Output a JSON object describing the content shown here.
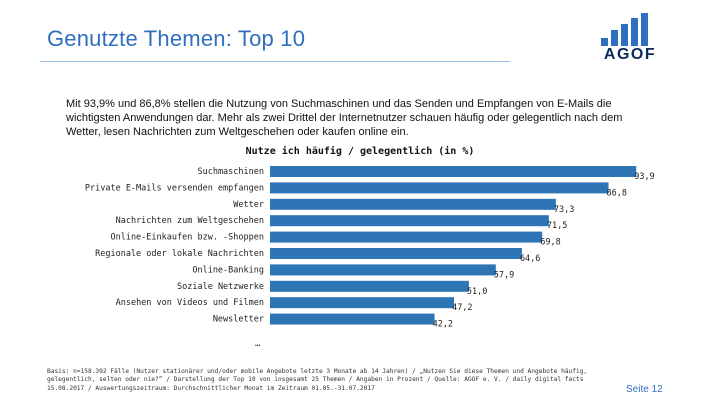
{
  "header": {
    "title": "Genutzte Themen: Top 10",
    "logo_text": "AGOF"
  },
  "intro": {
    "text": "Mit 93,9% und 86,8% stellen die Nutzung von Suchmaschinen und das Senden und Empfangen von    E-Mails die wichtigsten Anwendungen dar. Mehr als zwei Drittel der Internetnutzer schauen häufig oder gelegentlich nach dem Wetter, lesen Nachrichten zum Weltgeschehen oder kaufen online ein."
  },
  "chart_data": {
    "type": "bar",
    "orientation": "horizontal",
    "title": "Nutze ich häufig / gelegentlich (in %)",
    "categories": [
      "Suchmaschinen",
      "Private E-Mails versenden empfangen",
      "Wetter",
      "Nachrichten zum Weltgeschehen",
      "Online-Einkaufen bzw. -Shoppen",
      "Regionale oder lokale Nachrichten",
      "Online-Banking",
      "Soziale Netzwerke",
      "Ansehen von Videos und Filmen",
      "Newsletter"
    ],
    "values": [
      93.9,
      86.8,
      73.3,
      71.5,
      69.8,
      64.6,
      57.9,
      51.0,
      47.2,
      42.2
    ],
    "value_labels": [
      "93,9",
      "86,8",
      "73,3",
      "71,5",
      "69,8",
      "64,6",
      "57,9",
      "51,0",
      "47,2",
      "42,2"
    ],
    "xlim": [
      0,
      100
    ],
    "bar_color": "#2e75b6",
    "grid": false,
    "legend": "none"
  },
  "chart_footer": {
    "more": "…"
  },
  "footnote": {
    "text": "Basis: n=158.392 Fälle (Nutzer stationärer und/oder mobile Angebote letzte 3 Monate ab 14 Jahren) / „Nutzen Sie diese Themen und Angebote häufig, gelegentlich, selten oder nie?“ / Darstellung der Top 10 von insgesamt 25 Themen / Angaben in Prozent / Quelle: AGOF e. V. / daily digital facts 15.08.2017 / Auswertungszeitraum: Durchschnittlicher Monat im Zeitraum 01.05.-31.07.2017"
  },
  "page": {
    "number_label": "Seite 12"
  },
  "colors": {
    "title": "#2f6fbf",
    "bar": "#2e75b6",
    "logo_bars": "#2f6fbf",
    "logo_text": "#0a2a5a"
  }
}
